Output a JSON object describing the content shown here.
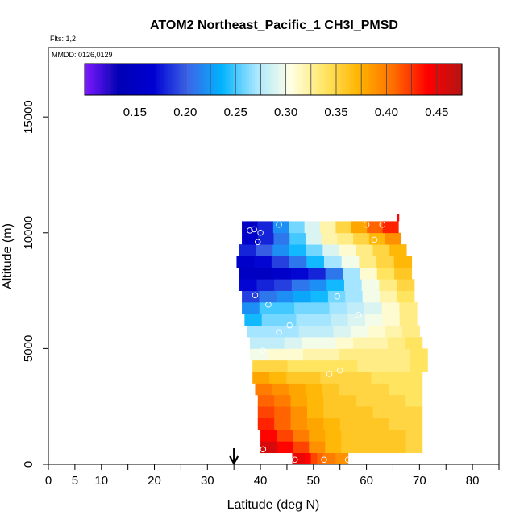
{
  "chart_data": {
    "type": "heatmap",
    "title": "ATOM2 Northeast_Pacific_1 CH3I_PMSD",
    "annotations": {
      "flights": "Flts: 1,2",
      "dates": "MMDD: 0126,0129"
    },
    "xlabel": "Latitude (deg N)",
    "ylabel": "Altitude (m)",
    "xlim": [
      0,
      85
    ],
    "ylim": [
      0,
      18000
    ],
    "xticks": [
      0,
      5,
      10,
      20,
      30,
      40,
      50,
      60,
      70,
      80
    ],
    "xtick_labels": [
      "0",
      "5",
      "10",
      "20",
      "30",
      "40",
      "50",
      "60",
      "70",
      "80"
    ],
    "xminor_ticks": [
      15,
      25,
      35,
      45,
      55,
      65,
      75,
      85
    ],
    "yticks": [
      0,
      5000,
      10000,
      15000
    ],
    "ytick_labels": [
      "0",
      "5000",
      "10000",
      "15000"
    ],
    "colorbar": {
      "range": [
        0.1,
        0.475
      ],
      "ticks": [
        0.15,
        0.2,
        0.25,
        0.3,
        0.35,
        0.4,
        0.45
      ],
      "tick_labels": [
        "0.15",
        "0.20",
        "0.25",
        "0.30",
        "0.35",
        "0.40",
        "0.45"
      ],
      "colors": [
        "#7f1aff",
        "#0000b4",
        "#0000d2",
        "#3c64e6",
        "#00b4ff",
        "#a8e6ff",
        "#ffffe6",
        "#ffe664",
        "#ffb400",
        "#ff6e00",
        "#ff0000",
        "#b41414"
      ]
    },
    "marker_latitude": 35,
    "layers": [
      {
        "alt": 0,
        "start": 46,
        "end": 56.5,
        "values": [
          0.45,
          0.45,
          0.44,
          0.42,
          0.41,
          0.4,
          0.4,
          0.39,
          0.39
        ]
      },
      {
        "alt": 500,
        "start": 40,
        "end": 70.5,
        "values": [
          0.46,
          0.44,
          0.42,
          0.39,
          0.37,
          0.36,
          0.36,
          0.36,
          0.36,
          0.35
        ]
      },
      {
        "alt": 1000,
        "start": 40,
        "end": 70.5,
        "values": [
          0.44,
          0.42,
          0.4,
          0.38,
          0.37,
          0.36,
          0.36,
          0.36,
          0.36,
          0.35
        ]
      },
      {
        "alt": 1500,
        "start": 39.5,
        "end": 70.5,
        "values": [
          0.43,
          0.41,
          0.39,
          0.38,
          0.37,
          0.36,
          0.36,
          0.36,
          0.35,
          0.35
        ]
      },
      {
        "alt": 2000,
        "start": 39.5,
        "end": 70.5,
        "values": [
          0.42,
          0.41,
          0.39,
          0.37,
          0.36,
          0.36,
          0.36,
          0.35,
          0.35,
          0.35
        ]
      },
      {
        "alt": 2500,
        "start": 39.5,
        "end": 70.5,
        "values": [
          0.41,
          0.4,
          0.38,
          0.37,
          0.36,
          0.36,
          0.35,
          0.35,
          0.35,
          0.34
        ]
      },
      {
        "alt": 3000,
        "start": 39,
        "end": 70.5,
        "values": [
          0.4,
          0.39,
          0.38,
          0.37,
          0.36,
          0.35,
          0.35,
          0.35,
          0.34,
          0.34
        ]
      },
      {
        "alt": 3500,
        "start": 38.5,
        "end": 70.5,
        "values": [
          0.38,
          0.37,
          0.36,
          0.36,
          0.35,
          0.35,
          0.35,
          0.34,
          0.34,
          0.34
        ]
      },
      {
        "alt": 4000,
        "start": 38.5,
        "end": 71.5,
        "values": [
          0.35,
          0.35,
          0.34,
          0.34,
          0.34,
          0.34,
          0.33,
          0.33,
          0.33,
          0.34
        ]
      },
      {
        "alt": 4500,
        "start": 38,
        "end": 71.5,
        "values": [
          0.3,
          0.31,
          0.31,
          0.32,
          0.32,
          0.33,
          0.33,
          0.33,
          0.33,
          0.34
        ]
      },
      {
        "alt": 5000,
        "start": 38,
        "end": 70.5,
        "values": [
          0.28,
          0.28,
          0.29,
          0.3,
          0.3,
          0.31,
          0.32,
          0.32,
          0.33,
          0.34
        ]
      },
      {
        "alt": 5500,
        "start": 37.5,
        "end": 70,
        "values": [
          0.27,
          0.27,
          0.27,
          0.28,
          0.28,
          0.29,
          0.3,
          0.31,
          0.32,
          0.33
        ]
      },
      {
        "alt": 6000,
        "start": 37,
        "end": 69.5,
        "values": [
          0.24,
          0.26,
          0.26,
          0.27,
          0.27,
          0.28,
          0.29,
          0.3,
          0.31,
          0.33
        ]
      },
      {
        "alt": 6500,
        "start": 36.5,
        "end": 69.5,
        "values": [
          0.22,
          0.25,
          0.25,
          0.26,
          0.26,
          0.27,
          0.28,
          0.29,
          0.31,
          0.33
        ]
      },
      {
        "alt": 7000,
        "start": 36.5,
        "end": 69,
        "values": [
          0.19,
          0.21,
          0.22,
          0.23,
          0.24,
          0.26,
          0.27,
          0.3,
          0.32,
          0.34
        ]
      },
      {
        "alt": 7500,
        "start": 36,
        "end": 69,
        "values": [
          0.17,
          0.18,
          0.19,
          0.21,
          0.22,
          0.24,
          0.27,
          0.3,
          0.33,
          0.35
        ]
      },
      {
        "alt": 8000,
        "start": 36,
        "end": 68.5,
        "values": [
          0.15,
          0.15,
          0.16,
          0.17,
          0.18,
          0.21,
          0.27,
          0.31,
          0.34,
          0.36
        ]
      },
      {
        "alt": 8500,
        "start": 35.5,
        "end": 68.5,
        "values": [
          0.16,
          0.17,
          0.19,
          0.21,
          0.24,
          0.27,
          0.3,
          0.33,
          0.35,
          0.37
        ]
      },
      {
        "alt": 9000,
        "start": 36,
        "end": 67.5,
        "values": [
          0.18,
          0.2,
          0.22,
          0.24,
          0.26,
          0.29,
          0.31,
          0.33,
          0.35,
          0.37
        ]
      },
      {
        "alt": 9500,
        "start": 36.5,
        "end": 66.5,
        "values": [
          0.16,
          0.18,
          0.21,
          0.25,
          0.29,
          0.32,
          0.33,
          0.35,
          0.37,
          0.39
        ]
      },
      {
        "alt": 10000,
        "start": 36.5,
        "end": 66,
        "values": [
          0.15,
          0.18,
          0.22,
          0.26,
          0.29,
          0.32,
          0.35,
          0.38,
          0.41,
          0.43
        ]
      }
    ],
    "layer_height": 500,
    "top_strip": {
      "lat": 65.8,
      "alt_from": 10500,
      "alt_to": 10800,
      "value": 0.44
    },
    "points": [
      {
        "lat": 38,
        "alt": 10100
      },
      {
        "lat": 38.8,
        "alt": 10150
      },
      {
        "lat": 40,
        "alt": 10000
      },
      {
        "lat": 39.5,
        "alt": 9600
      },
      {
        "lat": 43.5,
        "alt": 10350
      },
      {
        "lat": 60,
        "alt": 10350
      },
      {
        "lat": 63,
        "alt": 10350
      },
      {
        "lat": 61.5,
        "alt": 9700
      },
      {
        "lat": 35.5,
        "alt": 8300
      },
      {
        "lat": 39,
        "alt": 7300
      },
      {
        "lat": 41.5,
        "alt": 6900
      },
      {
        "lat": 54.5,
        "alt": 7250
      },
      {
        "lat": 58.5,
        "alt": 6450
      },
      {
        "lat": 45.5,
        "alt": 6000
      },
      {
        "lat": 43.5,
        "alt": 5700
      },
      {
        "lat": 40.5,
        "alt": 4900
      },
      {
        "lat": 53,
        "alt": 3900
      },
      {
        "lat": 55,
        "alt": 4050
      },
      {
        "lat": 40.5,
        "alt": 650
      },
      {
        "lat": 46.5,
        "alt": 200
      },
      {
        "lat": 52,
        "alt": 200
      },
      {
        "lat": 56.5,
        "alt": 200
      }
    ]
  }
}
